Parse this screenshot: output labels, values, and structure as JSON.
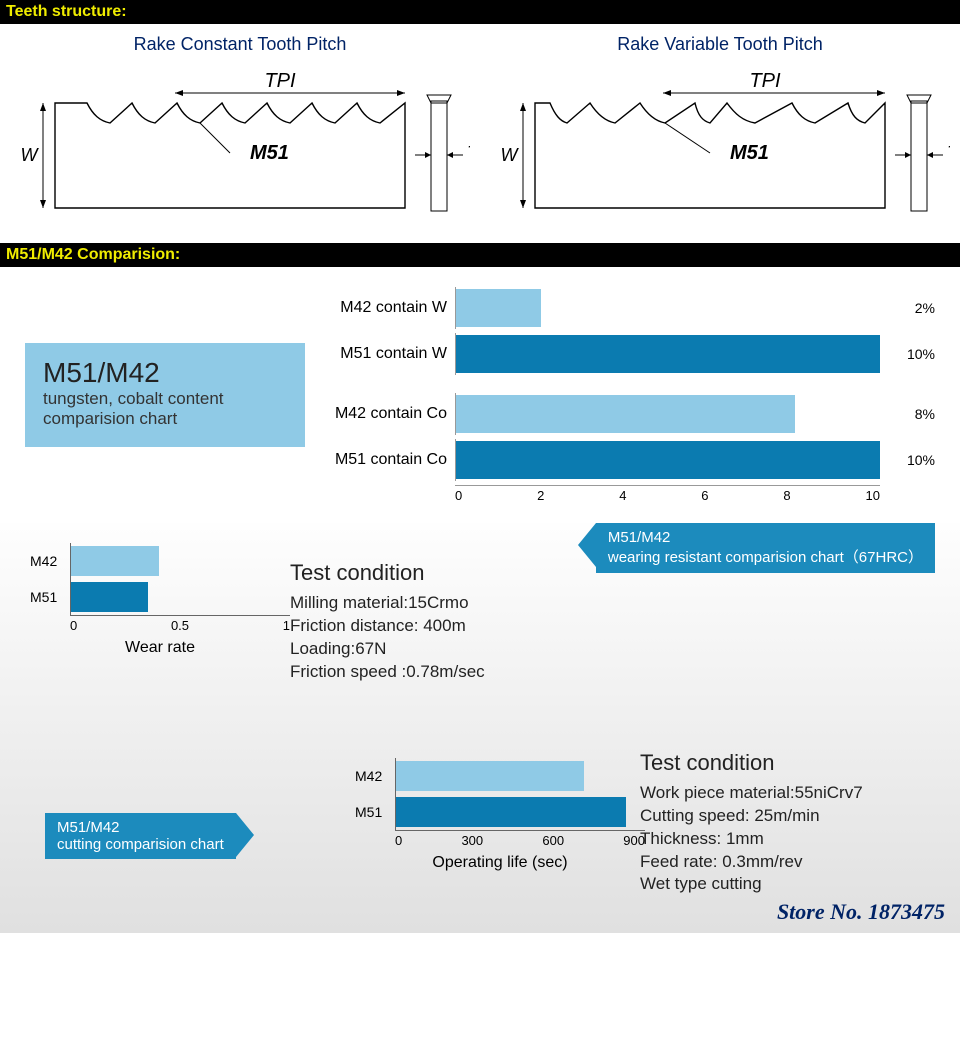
{
  "headers": {
    "teeth": "Teeth structure:",
    "comparison": "M51/M42 Comparision:"
  },
  "teeth": {
    "left_title": "Rake Constant Tooth Pitch",
    "right_title": "Rake Variable Tooth Pitch",
    "tpi": "TPI",
    "w": "W",
    "t": "T",
    "m51": "M51"
  },
  "content_chart": {
    "title_main": "M51/M42",
    "title_sub": "tungsten, cobalt content comparision chart",
    "max": 10,
    "bars": [
      {
        "label": "M42 contain W",
        "value": 2,
        "color": "#8fcae6",
        "pct": "2%"
      },
      {
        "label": "M51 contain W",
        "value": 10,
        "color": "#0b7bb0",
        "pct": "10%"
      },
      {
        "label": "M42 contain Co",
        "value": 8,
        "color": "#8fcae6",
        "pct": "8%"
      },
      {
        "label": "M51 contain Co",
        "value": 10,
        "color": "#0b7bb0",
        "pct": "10%"
      }
    ],
    "ticks": [
      "0",
      "2",
      "4",
      "6",
      "8",
      "10"
    ]
  },
  "wear_chart": {
    "title": "Wear rate",
    "max": 1,
    "bars": [
      {
        "label": "M42",
        "value": 0.4,
        "color": "#8fcae6"
      },
      {
        "label": "M51",
        "value": 0.35,
        "color": "#0b7bb0"
      }
    ],
    "ticks": [
      "0",
      "0.5",
      "1"
    ]
  },
  "op_chart": {
    "title": "Operating life (sec)",
    "max": 900,
    "bars": [
      {
        "label": "M42",
        "value": 680,
        "color": "#8fcae6"
      },
      {
        "label": "M51",
        "value": 830,
        "color": "#0b7bb0"
      }
    ],
    "ticks": [
      "0",
      "300",
      "600",
      "900"
    ]
  },
  "arrow1": {
    "l1": "M51/M42",
    "l2": "wearing resistant comparision chart（67HRC）"
  },
  "arrow2": {
    "l1": "M51/M42",
    "l2": "cutting comparision chart"
  },
  "tc1": {
    "h": "Test condition",
    "l1": "Milling material:15Crmo",
    "l2": "Friction distance: 400m",
    "l3": "Loading:67N",
    "l4": "Friction speed :0.78m/sec"
  },
  "tc2": {
    "h": "Test condition",
    "l1": "Work piece material:55niCrv7",
    "l2": "Cutting speed: 25m/min",
    "l3": "Thickness: 1mm",
    "l4": "Feed rate: 0.3mm/rev",
    "l5": "Wet type cutting"
  },
  "store": "Store No. 1873475",
  "colors": {
    "light": "#8fcae6",
    "dark": "#0b7bb0"
  }
}
